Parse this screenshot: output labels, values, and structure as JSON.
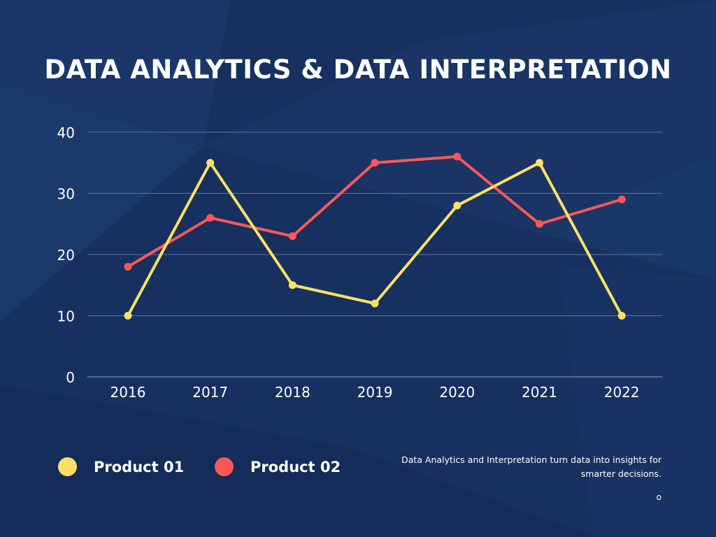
{
  "title": "DATA ANALYTICS & DATA INTERPRETATION",
  "chart_data": {
    "type": "line",
    "title": "DATA ANALYTICS & DATA INTERPRETATION",
    "categories": [
      "2016",
      "2017",
      "2018",
      "2019",
      "2020",
      "2021",
      "2022"
    ],
    "yticks": [
      "0",
      "10",
      "20",
      "30",
      "40"
    ],
    "ylim": [
      0,
      40
    ],
    "grid": true,
    "legend_position": "bottom-left",
    "series": [
      {
        "name": "Product 01",
        "color": "#ffe066",
        "values": [
          10,
          35,
          15,
          12,
          28,
          35,
          10
        ]
      },
      {
        "name": "Product 02",
        "color": "#ff5757",
        "values": [
          18,
          26,
          23,
          35,
          36,
          25,
          29
        ]
      }
    ]
  },
  "note": "Data Analytics and Interpretation turn data into insights for smarter decisions.",
  "mark": "o"
}
